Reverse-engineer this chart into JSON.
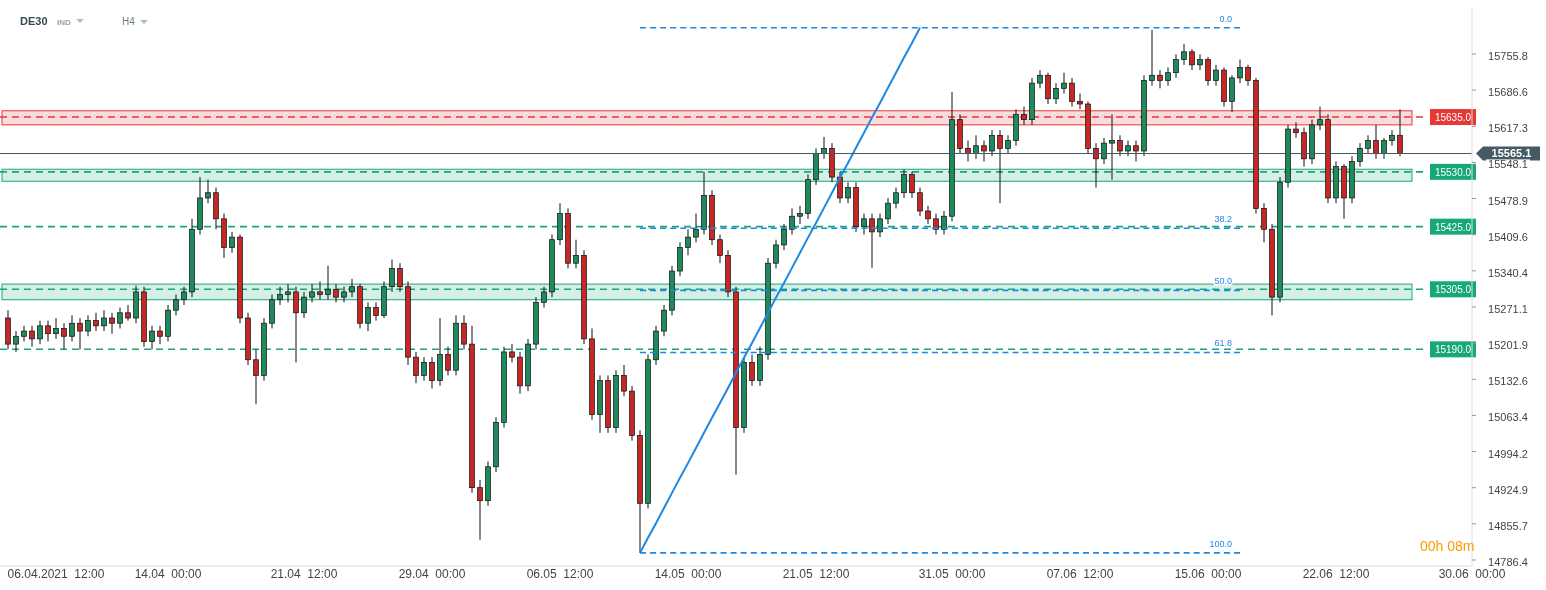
{
  "chart_data": {
    "type": "candlestick",
    "title": "DE30",
    "subtitle": "IND",
    "annotations": [
      "H4",
      "00h 08m"
    ],
    "categories": [
      null,
      null,
      null,
      null,
      null,
      null,
      "06.04.2021  12:00",
      null,
      null,
      null,
      null,
      null,
      null,
      null,
      null,
      null,
      null,
      null,
      null,
      null,
      "14.04  00:00",
      null,
      null,
      null,
      null,
      null,
      null,
      null,
      null,
      null,
      null,
      null,
      null,
      null,
      null,
      null,
      null,
      "21.04  12:00",
      null,
      null,
      null,
      null,
      null,
      null,
      null,
      null,
      null,
      null,
      null,
      null,
      null,
      null,
      null,
      "29.04  00:00",
      null,
      null,
      null,
      null,
      null,
      null,
      null,
      null,
      null,
      null,
      null,
      null,
      null,
      null,
      null,
      "06.05  12:00",
      null,
      null,
      null,
      null,
      null,
      null,
      null,
      null,
      null,
      null,
      null,
      null,
      null,
      null,
      null,
      "14.05  00:00",
      null,
      null,
      null,
      null,
      null,
      null,
      null,
      null,
      null,
      null,
      null,
      null,
      null,
      null,
      null,
      "21.05  12:00",
      null,
      null,
      null,
      null,
      null,
      null,
      null,
      null,
      null,
      null,
      null,
      null,
      null,
      null,
      null,
      null,
      "31.05  00:00",
      null,
      null,
      null,
      null,
      null,
      null,
      null,
      null,
      null,
      null,
      null,
      null,
      null,
      null,
      null,
      "07.06  12:00",
      null,
      null,
      null,
      null,
      null,
      null,
      null,
      null,
      null,
      null,
      null,
      null,
      null,
      null,
      null,
      "15.06  00:00",
      null,
      null,
      null,
      null,
      null,
      null,
      null,
      null,
      null,
      null,
      null,
      null,
      null,
      null,
      null,
      "22.06  12:00",
      null,
      null,
      null,
      null,
      null,
      null,
      null,
      null,
      null,
      null,
      null,
      null,
      null,
      null,
      null,
      null,
      "30.06  00:00"
    ],
    "ohlc": [
      [
        15250,
        15265,
        15190,
        15200
      ],
      [
        15200,
        15225,
        15185,
        15215
      ],
      [
        15215,
        15235,
        15205,
        15225
      ],
      [
        15225,
        15235,
        15195,
        15210
      ],
      [
        15210,
        15245,
        15200,
        15235
      ],
      [
        15235,
        15245,
        15205,
        15220
      ],
      [
        15220,
        15250,
        15210,
        15230
      ],
      [
        15230,
        15240,
        15190,
        15215
      ],
      [
        15215,
        15255,
        15205,
        15240
      ],
      [
        15240,
        15250,
        15190,
        15225
      ],
      [
        15225,
        15255,
        15215,
        15245
      ],
      [
        15245,
        15260,
        15225,
        15235
      ],
      [
        15235,
        15265,
        15225,
        15250
      ],
      [
        15250,
        15260,
        15220,
        15240
      ],
      [
        15240,
        15270,
        15230,
        15260
      ],
      [
        15260,
        15275,
        15245,
        15250
      ],
      [
        15250,
        15312,
        15240,
        15300
      ],
      [
        15300,
        15310,
        15195,
        15205
      ],
      [
        15205,
        15235,
        15190,
        15225
      ],
      [
        15225,
        15235,
        15200,
        15215
      ],
      [
        15215,
        15275,
        15205,
        15265
      ],
      [
        15265,
        15295,
        15255,
        15285
      ],
      [
        15285,
        15310,
        15275,
        15300
      ],
      [
        15300,
        15440,
        15290,
        15420
      ],
      [
        15420,
        15520,
        15410,
        15480
      ],
      [
        15480,
        15515,
        15470,
        15490
      ],
      [
        15490,
        15500,
        15420,
        15440
      ],
      [
        15440,
        15450,
        15365,
        15385
      ],
      [
        15385,
        15415,
        15375,
        15405
      ],
      [
        15405,
        15410,
        15240,
        15250
      ],
      [
        15250,
        15260,
        15160,
        15170
      ],
      [
        15170,
        15190,
        15085,
        15140
      ],
      [
        15140,
        15250,
        15130,
        15240
      ],
      [
        15240,
        15295,
        15230,
        15285
      ],
      [
        15285,
        15310,
        15275,
        15295
      ],
      [
        15295,
        15315,
        15280,
        15300
      ],
      [
        15300,
        15310,
        15165,
        15260
      ],
      [
        15260,
        15300,
        15250,
        15290
      ],
      [
        15290,
        15315,
        15280,
        15300
      ],
      [
        15300,
        15320,
        15285,
        15295
      ],
      [
        15295,
        15350,
        15285,
        15305
      ],
      [
        15305,
        15315,
        15280,
        15290
      ],
      [
        15290,
        15310,
        15280,
        15300
      ],
      [
        15300,
        15325,
        15290,
        15310
      ],
      [
        15310,
        15315,
        15230,
        15240
      ],
      [
        15240,
        15280,
        15225,
        15270
      ],
      [
        15270,
        15280,
        15245,
        15255
      ],
      [
        15255,
        15320,
        15250,
        15310
      ],
      [
        15310,
        15362,
        15300,
        15345
      ],
      [
        15345,
        15355,
        15300,
        15310
      ],
      [
        15310,
        15320,
        15160,
        15175
      ],
      [
        15175,
        15185,
        15125,
        15140
      ],
      [
        15140,
        15175,
        15130,
        15165
      ],
      [
        15165,
        15175,
        15115,
        15130
      ],
      [
        15130,
        15250,
        15120,
        15180
      ],
      [
        15180,
        15195,
        15140,
        15150
      ],
      [
        15150,
        15255,
        15140,
        15240
      ],
      [
        15240,
        15255,
        15190,
        15200
      ],
      [
        15200,
        15235,
        14915,
        14925
      ],
      [
        14925,
        14940,
        14825,
        14900
      ],
      [
        14900,
        14975,
        14890,
        14965
      ],
      [
        14965,
        15060,
        14955,
        15050
      ],
      [
        15050,
        15195,
        15040,
        15185
      ],
      [
        15185,
        15200,
        15165,
        15175
      ],
      [
        15175,
        15185,
        15105,
        15120
      ],
      [
        15120,
        15210,
        15110,
        15200
      ],
      [
        15200,
        15290,
        15190,
        15280
      ],
      [
        15280,
        15310,
        15270,
        15300
      ],
      [
        15300,
        15410,
        15290,
        15400
      ],
      [
        15400,
        15470,
        15390,
        15450
      ],
      [
        15450,
        15460,
        15345,
        15355
      ],
      [
        15355,
        15400,
        15345,
        15370
      ],
      [
        15370,
        15380,
        15200,
        15210
      ],
      [
        15210,
        15230,
        15055,
        15065
      ],
      [
        15065,
        15140,
        15030,
        15130
      ],
      [
        15130,
        15140,
        15030,
        15040
      ],
      [
        15040,
        15150,
        15030,
        15140
      ],
      [
        15140,
        15160,
        15100,
        15110
      ],
      [
        15110,
        15120,
        15015,
        15025
      ],
      [
        15025,
        15035,
        14800,
        14895
      ],
      [
        14895,
        15180,
        14885,
        15170
      ],
      [
        15170,
        15235,
        15160,
        15225
      ],
      [
        15225,
        15275,
        15215,
        15265
      ],
      [
        15265,
        15350,
        15255,
        15340
      ],
      [
        15340,
        15395,
        15330,
        15385
      ],
      [
        15385,
        15420,
        15370,
        15405
      ],
      [
        15405,
        15450,
        15395,
        15420
      ],
      [
        15420,
        15530,
        15410,
        15485
      ],
      [
        15485,
        15495,
        15390,
        15400
      ],
      [
        15400,
        15410,
        15355,
        15370
      ],
      [
        15370,
        15380,
        15290,
        15300
      ],
      [
        15300,
        15310,
        14950,
        15040
      ],
      [
        15040,
        15175,
        15030,
        15165
      ],
      [
        15165,
        15180,
        15120,
        15130
      ],
      [
        15130,
        15195,
        15120,
        15180
      ],
      [
        15180,
        15365,
        15170,
        15355
      ],
      [
        15355,
        15400,
        15345,
        15390
      ],
      [
        15390,
        15430,
        15380,
        15420
      ],
      [
        15420,
        15460,
        15410,
        15445
      ],
      [
        15445,
        15465,
        15430,
        15450
      ],
      [
        15450,
        15525,
        15440,
        15515
      ],
      [
        15515,
        15575,
        15505,
        15565
      ],
      [
        15565,
        15597,
        15555,
        15575
      ],
      [
        15575,
        15585,
        15510,
        15520
      ],
      [
        15520,
        15530,
        15470,
        15480
      ],
      [
        15480,
        15510,
        15470,
        15500
      ],
      [
        15500,
        15510,
        15415,
        15425
      ],
      [
        15425,
        15450,
        15410,
        15440
      ],
      [
        15440,
        15450,
        15346,
        15415
      ],
      [
        15415,
        15450,
        15405,
        15440
      ],
      [
        15440,
        15480,
        15430,
        15470
      ],
      [
        15470,
        15500,
        15460,
        15490
      ],
      [
        15490,
        15535,
        15480,
        15525
      ],
      [
        15525,
        15530,
        15480,
        15490
      ],
      [
        15490,
        15500,
        15445,
        15455
      ],
      [
        15455,
        15465,
        15430,
        15440
      ],
      [
        15440,
        15450,
        15410,
        15420
      ],
      [
        15420,
        15455,
        15410,
        15445
      ],
      [
        15445,
        15683,
        15435,
        15630
      ],
      [
        15630,
        15640,
        15565,
        15575
      ],
      [
        15575,
        15590,
        15550,
        15565
      ],
      [
        15565,
        15600,
        15555,
        15580
      ],
      [
        15580,
        15590,
        15550,
        15570
      ],
      [
        15570,
        15610,
        15560,
        15600
      ],
      [
        15600,
        15610,
        15470,
        15575
      ],
      [
        15575,
        15600,
        15565,
        15590
      ],
      [
        15590,
        15650,
        15580,
        15640
      ],
      [
        15640,
        15655,
        15620,
        15630
      ],
      [
        15630,
        15710,
        15620,
        15700
      ],
      [
        15700,
        15725,
        15690,
        15715
      ],
      [
        15715,
        15720,
        15660,
        15670
      ],
      [
        15670,
        15700,
        15660,
        15690
      ],
      [
        15690,
        15720,
        15680,
        15700
      ],
      [
        15700,
        15710,
        15655,
        15665
      ],
      [
        15665,
        15680,
        15650,
        15660
      ],
      [
        15660,
        15665,
        15565,
        15575
      ],
      [
        15575,
        15585,
        15500,
        15555
      ],
      [
        15555,
        15595,
        15545,
        15585
      ],
      [
        15585,
        15640,
        15515,
        15590
      ],
      [
        15590,
        15600,
        15560,
        15570
      ],
      [
        15570,
        15590,
        15560,
        15580
      ],
      [
        15580,
        15590,
        15550,
        15570
      ],
      [
        15570,
        15715,
        15560,
        15705
      ],
      [
        15705,
        15802,
        15695,
        15715
      ],
      [
        15715,
        15725,
        15690,
        15705
      ],
      [
        15705,
        15730,
        15695,
        15720
      ],
      [
        15720,
        15755,
        15710,
        15745
      ],
      [
        15745,
        15775,
        15735,
        15760
      ],
      [
        15760,
        15765,
        15725,
        15735
      ],
      [
        15735,
        15755,
        15725,
        15745
      ],
      [
        15745,
        15750,
        15695,
        15705
      ],
      [
        15705,
        15735,
        15695,
        15725
      ],
      [
        15725,
        15730,
        15655,
        15665
      ],
      [
        15665,
        15715,
        15645,
        15710
      ],
      [
        15710,
        15745,
        15700,
        15730
      ],
      [
        15730,
        15735,
        15695,
        15705
      ],
      [
        15705,
        15710,
        15450,
        15460
      ],
      [
        15460,
        15470,
        15395,
        15420
      ],
      [
        15420,
        15430,
        15255,
        15290
      ],
      [
        15290,
        15520,
        15280,
        15510
      ],
      [
        15510,
        15620,
        15500,
        15612
      ],
      [
        15612,
        15625,
        15595,
        15605
      ],
      [
        15605,
        15615,
        15540,
        15555
      ],
      [
        15555,
        15630,
        15545,
        15620
      ],
      [
        15620,
        15655,
        15610,
        15630
      ],
      [
        15630,
        15640,
        15470,
        15480
      ],
      [
        15480,
        15550,
        15470,
        15540
      ],
      [
        15540,
        15545,
        15440,
        15480
      ],
      [
        15480,
        15560,
        15470,
        15550
      ],
      [
        15550,
        15585,
        15540,
        15575
      ],
      [
        15575,
        15600,
        15565,
        15590
      ],
      [
        15590,
        15620,
        15555,
        15565
      ],
      [
        15565,
        15595,
        15555,
        15590
      ],
      [
        15590,
        15610,
        15580,
        15600
      ],
      [
        15600,
        15650,
        15560,
        15565.1
      ],
      null,
      null,
      null,
      null,
      null,
      null,
      null,
      null,
      null
    ],
    "ylim": [
      14774.9,
      15843.9
    ],
    "yticks": [
      15755.8,
      15686.6,
      15617.3,
      15548.1,
      15478.9,
      15409.6,
      15340.4,
      15271.1,
      15201.9,
      15132.6,
      15063.4,
      14994.2,
      14924.9,
      14855.7,
      14786.4
    ],
    "series": [
      {
        "type": "line",
        "color": "#1e88e5",
        "line_style": "solid",
        "values": [
          null,
          null,
          null,
          null,
          null,
          null,
          null,
          null,
          null,
          null,
          null,
          null,
          null,
          null,
          null,
          null,
          null,
          null,
          null,
          null,
          null,
          null,
          null,
          null,
          null,
          null,
          null,
          null,
          null,
          null,
          null,
          null,
          null,
          null,
          null,
          null,
          null,
          null,
          null,
          null,
          null,
          null,
          null,
          null,
          null,
          null,
          null,
          null,
          null,
          null,
          null,
          null,
          null,
          null,
          null,
          null,
          null,
          null,
          null,
          null,
          null,
          null,
          null,
          null,
          null,
          null,
          null,
          null,
          null,
          null,
          null,
          null,
          null,
          null,
          null,
          null,
          null,
          null,
          null,
          14800,
          14829,
          14857,
          14886,
          14915,
          14944,
          14972,
          15001,
          15030,
          15059,
          15087,
          15116,
          15145,
          15174,
          15202,
          15231,
          15260,
          15289,
          15317,
          15346,
          15375,
          15404,
          15432,
          15461,
          15490,
          15519,
          15547,
          15576,
          15605,
          15634,
          15662,
          15691,
          15720,
          15749,
          15777,
          15806,
          null,
          null,
          null,
          null,
          null,
          null,
          null,
          null,
          null,
          null,
          null,
          null,
          null,
          null,
          null,
          null,
          null,
          null,
          null,
          null,
          null,
          null,
          null,
          null,
          null,
          null,
          null,
          null,
          null,
          null,
          null,
          null,
          null,
          null,
          null,
          null,
          null,
          null,
          null,
          null,
          null,
          null,
          null,
          null,
          null,
          null,
          null,
          null,
          null,
          null,
          null,
          null,
          null,
          null,
          null,
          null,
          null,
          null,
          null,
          null,
          null,
          null,
          null,
          null,
          null,
          null,
          null,
          null,
          null
        ]
      },
      {
        "type": "line",
        "name": "0.0",
        "color": "#1e88e5",
        "line_style": "dashed",
        "values": [
          null,
          null,
          null,
          null,
          null,
          null,
          null,
          null,
          null,
          null,
          null,
          null,
          null,
          null,
          null,
          null,
          null,
          null,
          null,
          null,
          null,
          null,
          null,
          null,
          null,
          null,
          null,
          null,
          null,
          null,
          null,
          null,
          null,
          null,
          null,
          null,
          null,
          null,
          null,
          null,
          null,
          null,
          null,
          null,
          null,
          null,
          null,
          null,
          null,
          null,
          null,
          null,
          null,
          null,
          null,
          null,
          null,
          null,
          null,
          null,
          null,
          null,
          null,
          null,
          null,
          null,
          null,
          null,
          null,
          null,
          null,
          null,
          null,
          null,
          null,
          null,
          null,
          null,
          null,
          15806,
          15806,
          15806,
          15806,
          15806,
          15806,
          15806,
          15806,
          15806,
          15806,
          15806,
          15806,
          15806,
          15806,
          15806,
          15806,
          15806,
          15806,
          15806,
          15806,
          15806,
          15806,
          15806,
          15806,
          15806,
          15806,
          15806,
          15806,
          15806,
          15806,
          15806,
          15806,
          15806,
          15806,
          15806,
          15806,
          15806,
          15806,
          15806,
          15806,
          15806,
          15806,
          15806,
          15806,
          15806,
          15806,
          15806,
          15806,
          15806,
          15806,
          15806,
          15806,
          15806,
          15806,
          15806,
          15806,
          15806,
          15806,
          15806,
          15806,
          15806,
          15806,
          15806,
          15806,
          15806,
          15806,
          15806,
          15806,
          15806,
          15806,
          15806,
          15806,
          15806,
          15806,
          15806,
          15806,
          null,
          null,
          null,
          null,
          null,
          null,
          null,
          null,
          null,
          null,
          null,
          null,
          null,
          null,
          null,
          null,
          null,
          null,
          null,
          null,
          null,
          null,
          null,
          null,
          null,
          null,
          null,
          null,
          null
        ]
      },
      {
        "type": "line",
        "name": "38.2",
        "color": "#1e88e5",
        "line_style": "dashed",
        "values": [
          null,
          null,
          null,
          null,
          null,
          null,
          null,
          null,
          null,
          null,
          null,
          null,
          null,
          null,
          null,
          null,
          null,
          null,
          null,
          null,
          null,
          null,
          null,
          null,
          null,
          null,
          null,
          null,
          null,
          null,
          null,
          null,
          null,
          null,
          null,
          null,
          null,
          null,
          null,
          null,
          null,
          null,
          null,
          null,
          null,
          null,
          null,
          null,
          null,
          null,
          null,
          null,
          null,
          null,
          null,
          null,
          null,
          null,
          null,
          null,
          null,
          null,
          null,
          null,
          null,
          null,
          null,
          null,
          null,
          null,
          null,
          null,
          null,
          null,
          null,
          null,
          null,
          null,
          null,
          15422,
          15422,
          15422,
          15422,
          15422,
          15422,
          15422,
          15422,
          15422,
          15422,
          15422,
          15422,
          15422,
          15422,
          15422,
          15422,
          15422,
          15422,
          15422,
          15422,
          15422,
          15422,
          15422,
          15422,
          15422,
          15422,
          15422,
          15422,
          15422,
          15422,
          15422,
          15422,
          15422,
          15422,
          15422,
          15422,
          15422,
          15422,
          15422,
          15422,
          15422,
          15422,
          15422,
          15422,
          15422,
          15422,
          15422,
          15422,
          15422,
          15422,
          15422,
          15422,
          15422,
          15422,
          15422,
          15422,
          15422,
          15422,
          15422,
          15422,
          15422,
          15422,
          15422,
          15422,
          15422,
          15422,
          15422,
          15422,
          15422,
          15422,
          15422,
          15422,
          15422,
          15422,
          15422,
          15422,
          null,
          null,
          null,
          null,
          null,
          null,
          null,
          null,
          null,
          null,
          null,
          null,
          null,
          null,
          null,
          null,
          null,
          null,
          null,
          null,
          null,
          null,
          null,
          null,
          null,
          null,
          null,
          null,
          null
        ]
      },
      {
        "type": "line",
        "name": "50.0",
        "color": "#1e88e5",
        "line_style": "dashed",
        "values": [
          null,
          null,
          null,
          null,
          null,
          null,
          null,
          null,
          null,
          null,
          null,
          null,
          null,
          null,
          null,
          null,
          null,
          null,
          null,
          null,
          null,
          null,
          null,
          null,
          null,
          null,
          null,
          null,
          null,
          null,
          null,
          null,
          null,
          null,
          null,
          null,
          null,
          null,
          null,
          null,
          null,
          null,
          null,
          null,
          null,
          null,
          null,
          null,
          null,
          null,
          null,
          null,
          null,
          null,
          null,
          null,
          null,
          null,
          null,
          null,
          null,
          null,
          null,
          null,
          null,
          null,
          null,
          null,
          null,
          null,
          null,
          null,
          null,
          null,
          null,
          null,
          null,
          null,
          null,
          15303,
          15303,
          15303,
          15303,
          15303,
          15303,
          15303,
          15303,
          15303,
          15303,
          15303,
          15303,
          15303,
          15303,
          15303,
          15303,
          15303,
          15303,
          15303,
          15303,
          15303,
          15303,
          15303,
          15303,
          15303,
          15303,
          15303,
          15303,
          15303,
          15303,
          15303,
          15303,
          15303,
          15303,
          15303,
          15303,
          15303,
          15303,
          15303,
          15303,
          15303,
          15303,
          15303,
          15303,
          15303,
          15303,
          15303,
          15303,
          15303,
          15303,
          15303,
          15303,
          15303,
          15303,
          15303,
          15303,
          15303,
          15303,
          15303,
          15303,
          15303,
          15303,
          15303,
          15303,
          15303,
          15303,
          15303,
          15303,
          15303,
          15303,
          15303,
          15303,
          15303,
          15303,
          15303,
          15303,
          null,
          null,
          null,
          null,
          null,
          null,
          null,
          null,
          null,
          null,
          null,
          null,
          null,
          null,
          null,
          null,
          null,
          null,
          null,
          null,
          null,
          null,
          null,
          null,
          null,
          null,
          null,
          null,
          null
        ]
      },
      {
        "type": "line",
        "name": "61.8",
        "color": "#1e88e5",
        "line_style": "dashed",
        "values": [
          null,
          null,
          null,
          null,
          null,
          null,
          null,
          null,
          null,
          null,
          null,
          null,
          null,
          null,
          null,
          null,
          null,
          null,
          null,
          null,
          null,
          null,
          null,
          null,
          null,
          null,
          null,
          null,
          null,
          null,
          null,
          null,
          null,
          null,
          null,
          null,
          null,
          null,
          null,
          null,
          null,
          null,
          null,
          null,
          null,
          null,
          null,
          null,
          null,
          null,
          null,
          null,
          null,
          null,
          null,
          null,
          null,
          null,
          null,
          null,
          null,
          null,
          null,
          null,
          null,
          null,
          null,
          null,
          null,
          null,
          null,
          null,
          null,
          null,
          null,
          null,
          null,
          null,
          null,
          15184,
          15184,
          15184,
          15184,
          15184,
          15184,
          15184,
          15184,
          15184,
          15184,
          15184,
          15184,
          15184,
          15184,
          15184,
          15184,
          15184,
          15184,
          15184,
          15184,
          15184,
          15184,
          15184,
          15184,
          15184,
          15184,
          15184,
          15184,
          15184,
          15184,
          15184,
          15184,
          15184,
          15184,
          15184,
          15184,
          15184,
          15184,
          15184,
          15184,
          15184,
          15184,
          15184,
          15184,
          15184,
          15184,
          15184,
          15184,
          15184,
          15184,
          15184,
          15184,
          15184,
          15184,
          15184,
          15184,
          15184,
          15184,
          15184,
          15184,
          15184,
          15184,
          15184,
          15184,
          15184,
          15184,
          15184,
          15184,
          15184,
          15184,
          15184,
          15184,
          15184,
          15184,
          15184,
          15184,
          null,
          null,
          null,
          null,
          null,
          null,
          null,
          null,
          null,
          null,
          null,
          null,
          null,
          null,
          null,
          null,
          null,
          null,
          null,
          null,
          null,
          null,
          null,
          null,
          null,
          null,
          null,
          null,
          null
        ]
      },
      {
        "type": "line",
        "name": "100.0",
        "color": "#1e88e5",
        "line_style": "dashed",
        "values": [
          null,
          null,
          null,
          null,
          null,
          null,
          null,
          null,
          null,
          null,
          null,
          null,
          null,
          null,
          null,
          null,
          null,
          null,
          null,
          null,
          null,
          null,
          null,
          null,
          null,
          null,
          null,
          null,
          null,
          null,
          null,
          null,
          null,
          null,
          null,
          null,
          null,
          null,
          null,
          null,
          null,
          null,
          null,
          null,
          null,
          null,
          null,
          null,
          null,
          null,
          null,
          null,
          null,
          null,
          null,
          null,
          null,
          null,
          null,
          null,
          null,
          null,
          null,
          null,
          null,
          null,
          null,
          null,
          null,
          null,
          null,
          null,
          null,
          null,
          null,
          null,
          null,
          null,
          null,
          14800,
          14800,
          14800,
          14800,
          14800,
          14800,
          14800,
          14800,
          14800,
          14800,
          14800,
          14800,
          14800,
          14800,
          14800,
          14800,
          14800,
          14800,
          14800,
          14800,
          14800,
          14800,
          14800,
          14800,
          14800,
          14800,
          14800,
          14800,
          14800,
          14800,
          14800,
          14800,
          14800,
          14800,
          14800,
          14800,
          14800,
          14800,
          14800,
          14800,
          14800,
          14800,
          14800,
          14800,
          14800,
          14800,
          14800,
          14800,
          14800,
          14800,
          14800,
          14800,
          14800,
          14800,
          14800,
          14800,
          14800,
          14800,
          14800,
          14800,
          14800,
          14800,
          14800,
          14800,
          14800,
          14800,
          14800,
          14800,
          14800,
          14800,
          14800,
          14800,
          14800,
          14800,
          14800,
          14800,
          null,
          null,
          null,
          null,
          null,
          null,
          null,
          null,
          null,
          null,
          null,
          null,
          null,
          null,
          null,
          null,
          null,
          null,
          null,
          null,
          null,
          null,
          null,
          null,
          null,
          null,
          null,
          null,
          null
        ]
      }
    ],
    "bands": [
      {
        "axis": "y",
        "from": 15620,
        "to": 15647,
        "color": "#e53935"
      },
      {
        "axis": "y",
        "from": 15512,
        "to": 15535,
        "color": "#16a877"
      },
      {
        "axis": "y",
        "from": 15285,
        "to": 15315,
        "color": "#16a877"
      }
    ],
    "ref_lines": [
      {
        "axis": "y",
        "value": 15635,
        "label": "15635.0",
        "color": "#e53935",
        "line_style": "dashed"
      },
      {
        "axis": "y",
        "value": 15530,
        "label": "15530.0",
        "color": "#16a877",
        "line_style": "dashed"
      },
      {
        "axis": "y",
        "value": 15425,
        "label": "15425.0",
        "color": "#16a877",
        "line_style": "dashed"
      },
      {
        "axis": "y",
        "value": 15305,
        "label": "15305.0",
        "color": "#16a877",
        "line_style": "dashed"
      },
      {
        "axis": "y",
        "value": 15190,
        "label": "15190.0",
        "color": "#16a877",
        "line_style": "dashed"
      },
      {
        "axis": "y",
        "value": 15565.1,
        "label": "15565.1",
        "color": "#455a64",
        "line_style": "solid"
      }
    ],
    "grid": false
  }
}
